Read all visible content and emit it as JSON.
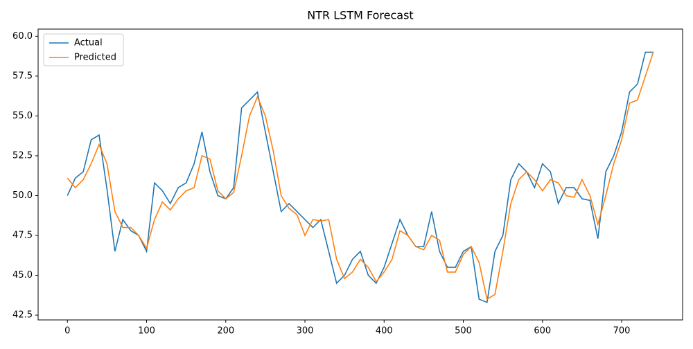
{
  "chart_data": {
    "type": "line",
    "title": "NTR LSTM Forecast",
    "x": [
      0,
      10,
      20,
      30,
      40,
      50,
      60,
      70,
      80,
      90,
      100,
      110,
      120,
      130,
      140,
      150,
      160,
      170,
      180,
      190,
      200,
      210,
      220,
      230,
      240,
      250,
      260,
      270,
      280,
      290,
      300,
      310,
      320,
      330,
      340,
      350,
      360,
      370,
      380,
      390,
      400,
      410,
      420,
      430,
      440,
      450,
      460,
      470,
      480,
      490,
      500,
      510,
      520,
      530,
      540,
      550,
      560,
      570,
      580,
      590,
      600,
      610,
      620,
      630,
      640,
      650,
      660,
      670,
      680,
      690,
      700,
      710,
      720,
      730,
      740
    ],
    "series": [
      {
        "name": "Actual",
        "color": "#1f77b4",
        "values": [
          50.0,
          51.1,
          51.5,
          53.5,
          53.8,
          50.4,
          46.5,
          48.5,
          47.8,
          47.5,
          46.5,
          50.8,
          50.3,
          49.5,
          50.5,
          50.8,
          52.0,
          54.0,
          51.5,
          50.0,
          49.8,
          50.5,
          55.5,
          56.0,
          56.5,
          54.0,
          51.5,
          49.0,
          49.5,
          49.0,
          48.5,
          48.0,
          48.5,
          46.5,
          44.5,
          45.0,
          46.0,
          46.5,
          45.0,
          44.5,
          45.5,
          47.0,
          48.5,
          47.5,
          46.8,
          46.8,
          49.0,
          46.5,
          45.5,
          45.5,
          46.5,
          46.8,
          43.5,
          43.3,
          46.5,
          47.5,
          51.0,
          52.0,
          51.5,
          50.5,
          52.0,
          51.5,
          49.5,
          50.5,
          50.5,
          49.8,
          49.7,
          47.3,
          51.5,
          52.5,
          54.0,
          56.5,
          57.0,
          59.0,
          59.0
        ]
      },
      {
        "name": "Predicted",
        "color": "#ff7f0e",
        "values": [
          51.1,
          50.5,
          51.0,
          52.0,
          53.2,
          52.0,
          49.0,
          48.0,
          48.0,
          47.5,
          46.7,
          48.5,
          49.6,
          49.1,
          49.8,
          50.3,
          50.5,
          52.5,
          52.3,
          50.3,
          49.8,
          50.2,
          52.5,
          55.0,
          56.2,
          55.0,
          52.8,
          50.0,
          49.2,
          48.8,
          47.5,
          48.5,
          48.4,
          48.5,
          46.0,
          44.8,
          45.2,
          46.0,
          45.5,
          44.6,
          45.2,
          46.0,
          47.8,
          47.5,
          46.8,
          46.6,
          47.5,
          47.2,
          45.2,
          45.2,
          46.3,
          46.8,
          45.8,
          43.5,
          43.8,
          46.5,
          49.5,
          51.0,
          51.5,
          51.0,
          50.3,
          51.0,
          50.8,
          50.0,
          49.9,
          51.0,
          50.0,
          48.2,
          50.0,
          52.0,
          53.5,
          55.8,
          56.0,
          57.5,
          59.0
        ]
      }
    ],
    "xlim": [
      -37,
      777
    ],
    "ylim": [
      42.2,
      60.45
    ],
    "xticks": [
      0,
      100,
      200,
      300,
      400,
      500,
      600,
      700
    ],
    "yticks": [
      {
        "value": 42.5,
        "label": "42.5"
      },
      {
        "value": 45,
        "label": "45.0"
      },
      {
        "value": 47.5,
        "label": "47.5"
      },
      {
        "value": 50,
        "label": "50.0"
      },
      {
        "value": 52.5,
        "label": "52.5"
      },
      {
        "value": 55,
        "label": "55.0"
      },
      {
        "value": 57.5,
        "label": "57.5"
      },
      {
        "value": 60,
        "label": "60.0"
      }
    ],
    "legend": "upper left"
  }
}
